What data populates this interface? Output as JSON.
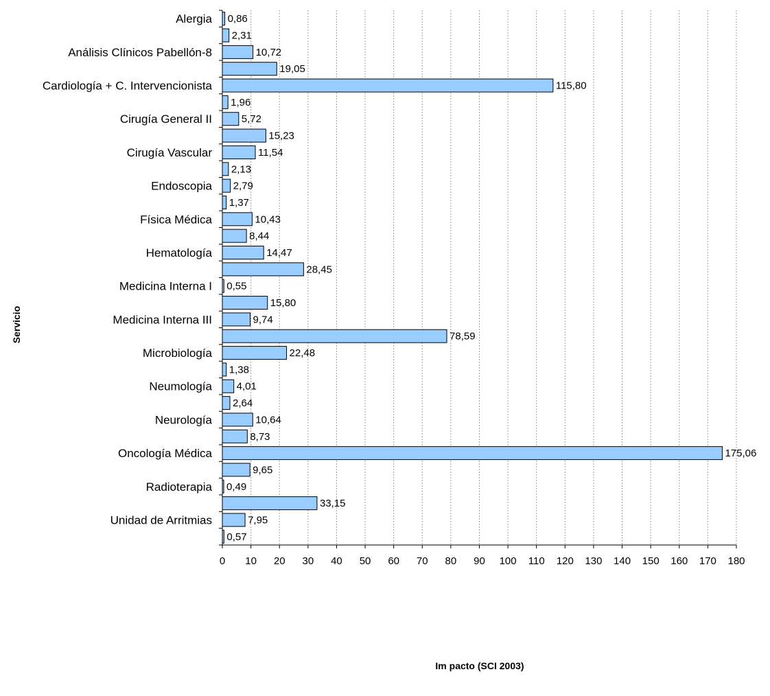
{
  "chart_data": {
    "type": "bar",
    "orientation": "horizontal",
    "title": "",
    "xlabel": "Im pacto (SCI 2003)",
    "ylabel": "Servicio",
    "xlim": [
      0,
      180
    ],
    "xticks": [
      0,
      10,
      20,
      30,
      40,
      50,
      60,
      70,
      80,
      90,
      100,
      110,
      120,
      130,
      140,
      150,
      160,
      170,
      180
    ],
    "grid": "vertical-dotted",
    "bar_color": "#99ccff",
    "categories": [
      "Alergia",
      "",
      "Análisis Clínicos Pabellón-8",
      "",
      "Cardiología + C. Intervencionista",
      "",
      "Cirugía General II",
      "",
      "Cirugía Vascular",
      "",
      "Endoscopia",
      "",
      "Física Médica",
      "",
      "Hematología",
      "",
      "Medicina Interna I",
      "",
      "Medicina Interna III",
      "",
      "Microbiología",
      "",
      "Neumología",
      "",
      "Neurología",
      "",
      "Oncología Médica",
      "",
      "Radioterapia",
      "",
      "Unidad de Arritmias",
      ""
    ],
    "values": [
      0.86,
      2.31,
      10.72,
      19.05,
      115.8,
      1.96,
      5.72,
      15.23,
      11.54,
      2.13,
      2.79,
      1.37,
      10.43,
      8.44,
      14.47,
      28.45,
      0.55,
      15.8,
      9.74,
      78.59,
      22.48,
      1.38,
      4.01,
      2.64,
      10.64,
      8.73,
      175.06,
      9.65,
      0.49,
      33.15,
      7.95,
      0.57
    ],
    "value_labels": [
      "0,86",
      "2,31",
      "10,72",
      "19,05",
      "115,80",
      "1,96",
      "5,72",
      "15,23",
      "11,54",
      "2,13",
      "2,79",
      "1,37",
      "10,43",
      "8,44",
      "14,47",
      "28,45",
      "0,55",
      "15,80",
      "9,74",
      "78,59",
      "22,48",
      "1,38",
      "4,01",
      "2,64",
      "10,64",
      "8,73",
      "175,06",
      "9,65",
      "0,49",
      "33,15",
      "7,95",
      "0,57"
    ]
  }
}
